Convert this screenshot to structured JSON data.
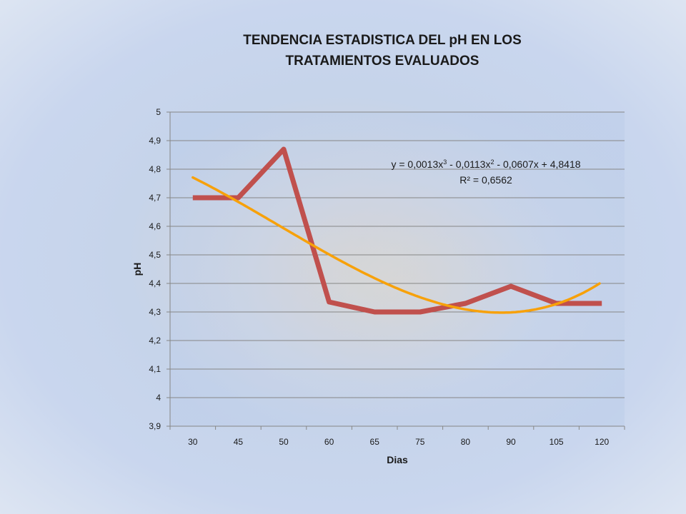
{
  "chart_data": {
    "type": "line",
    "title_lines": [
      "TENDENCIA ESTADISTICA DEL pH EN LOS",
      "TRATAMIENTOS EVALUADOS"
    ],
    "xlabel": "Dias",
    "ylabel": "pH",
    "categories": [
      "30",
      "45",
      "50",
      "60",
      "65",
      "75",
      "80",
      "90",
      "105",
      "120"
    ],
    "ylim": [
      3.9,
      5.0
    ],
    "y_ticks": [
      "3,9",
      "4",
      "4,1",
      "4,2",
      "4,3",
      "4,4",
      "4,5",
      "4,6",
      "4,7",
      "4,8",
      "4,9",
      "5"
    ],
    "y_tick_values": [
      3.9,
      4.0,
      4.1,
      4.2,
      4.3,
      4.4,
      4.5,
      4.6,
      4.7,
      4.8,
      4.9,
      5.0
    ],
    "grid": true,
    "series": [
      {
        "values": [
          4.7,
          4.7,
          4.87,
          4.335,
          4.3,
          4.3,
          4.33,
          4.39,
          4.33,
          4.33
        ],
        "color": "#c0504d"
      }
    ],
    "trendline": {
      "type": "polynomial-3",
      "coefficients": [
        0.0013,
        -0.0113,
        -0.0607,
        4.8418
      ],
      "color": "#f7a10a",
      "equation": {
        "prefix": "y = 0,0013x",
        "sup1": "3",
        "mid": " - 0,0113x",
        "sup2": "2",
        "suffix": " - 0,0607x + 4,8418"
      },
      "r_squared": "R² = 0,6562"
    }
  }
}
